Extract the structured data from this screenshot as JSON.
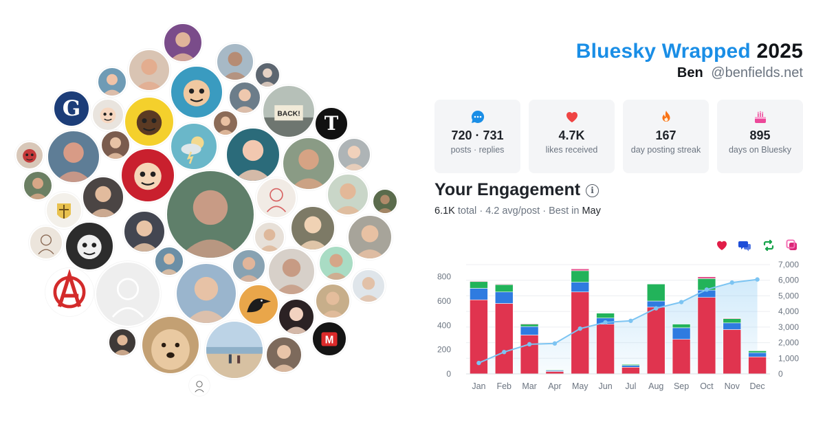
{
  "header": {
    "brand": "Bluesky Wrapped",
    "year": "2025",
    "user_name": "Ben",
    "handle": "@benfields.net"
  },
  "stats": [
    {
      "icon": "chat-bubble-icon",
      "value": "720 · 731",
      "label": "posts · replies",
      "color": "#1a8ee6"
    },
    {
      "icon": "heart-icon",
      "value": "4.7K",
      "label": "likes received",
      "color": "#ef4444"
    },
    {
      "icon": "flame-icon",
      "value": "167",
      "label": "day posting streak",
      "color": "#f97316"
    },
    {
      "icon": "cake-icon",
      "value": "895",
      "label": "days on Bluesky",
      "color": "#ec4899"
    }
  ],
  "engagement": {
    "title": "Your Engagement",
    "total": "6.1K",
    "total_word": "total",
    "avg": "4.2 avg/post",
    "best_prefix": "Best in",
    "best_month": "May",
    "legend_icons": [
      {
        "icon": "heart-icon",
        "color": "#e11d48"
      },
      {
        "icon": "reply-icon",
        "color": "#1d4ed8"
      },
      {
        "icon": "repost-icon",
        "color": "#16a34a"
      },
      {
        "icon": "quote-icon",
        "color": "#db2777"
      }
    ]
  },
  "chart_data": {
    "type": "bar",
    "stacked": true,
    "categories": [
      "Jan",
      "Feb",
      "Mar",
      "Apr",
      "May",
      "Jun",
      "Jul",
      "Aug",
      "Sep",
      "Oct",
      "Nov",
      "Dec"
    ],
    "series": [
      {
        "color": "#e0344f",
        "values": [
          610,
          580,
          320,
          20,
          675,
          410,
          55,
          550,
          285,
          630,
          365,
          140
        ]
      },
      {
        "color": "#2f7be0",
        "values": [
          95,
          95,
          70,
          8,
          80,
          50,
          15,
          50,
          95,
          60,
          55,
          35
        ]
      },
      {
        "color": "#22b35a",
        "values": [
          55,
          60,
          20,
          5,
          95,
          40,
          8,
          140,
          30,
          95,
          35,
          15
        ]
      },
      {
        "color": "#e3508c",
        "values": [
          5,
          5,
          5,
          0,
          15,
          0,
          0,
          0,
          0,
          15,
          5,
          0
        ]
      }
    ],
    "cumulative": {
      "color": "#7cc4f2",
      "values": [
        700,
        1400,
        1900,
        1950,
        2900,
        3300,
        3400,
        4200,
        4600,
        5400,
        5850,
        6050
      ]
    },
    "y_left": {
      "ticks": [
        "0",
        "200",
        "400",
        "600",
        "800"
      ],
      "max": 900
    },
    "y_right": {
      "ticks": [
        "0",
        "1,000",
        "2,000",
        "3,000",
        "4,000",
        "5,000",
        "6,000",
        "7,000"
      ],
      "max": 7000
    },
    "grid": true
  },
  "avatar_colors": {
    "skin": "#e8b79a",
    "dark": "#2b2b2b"
  }
}
